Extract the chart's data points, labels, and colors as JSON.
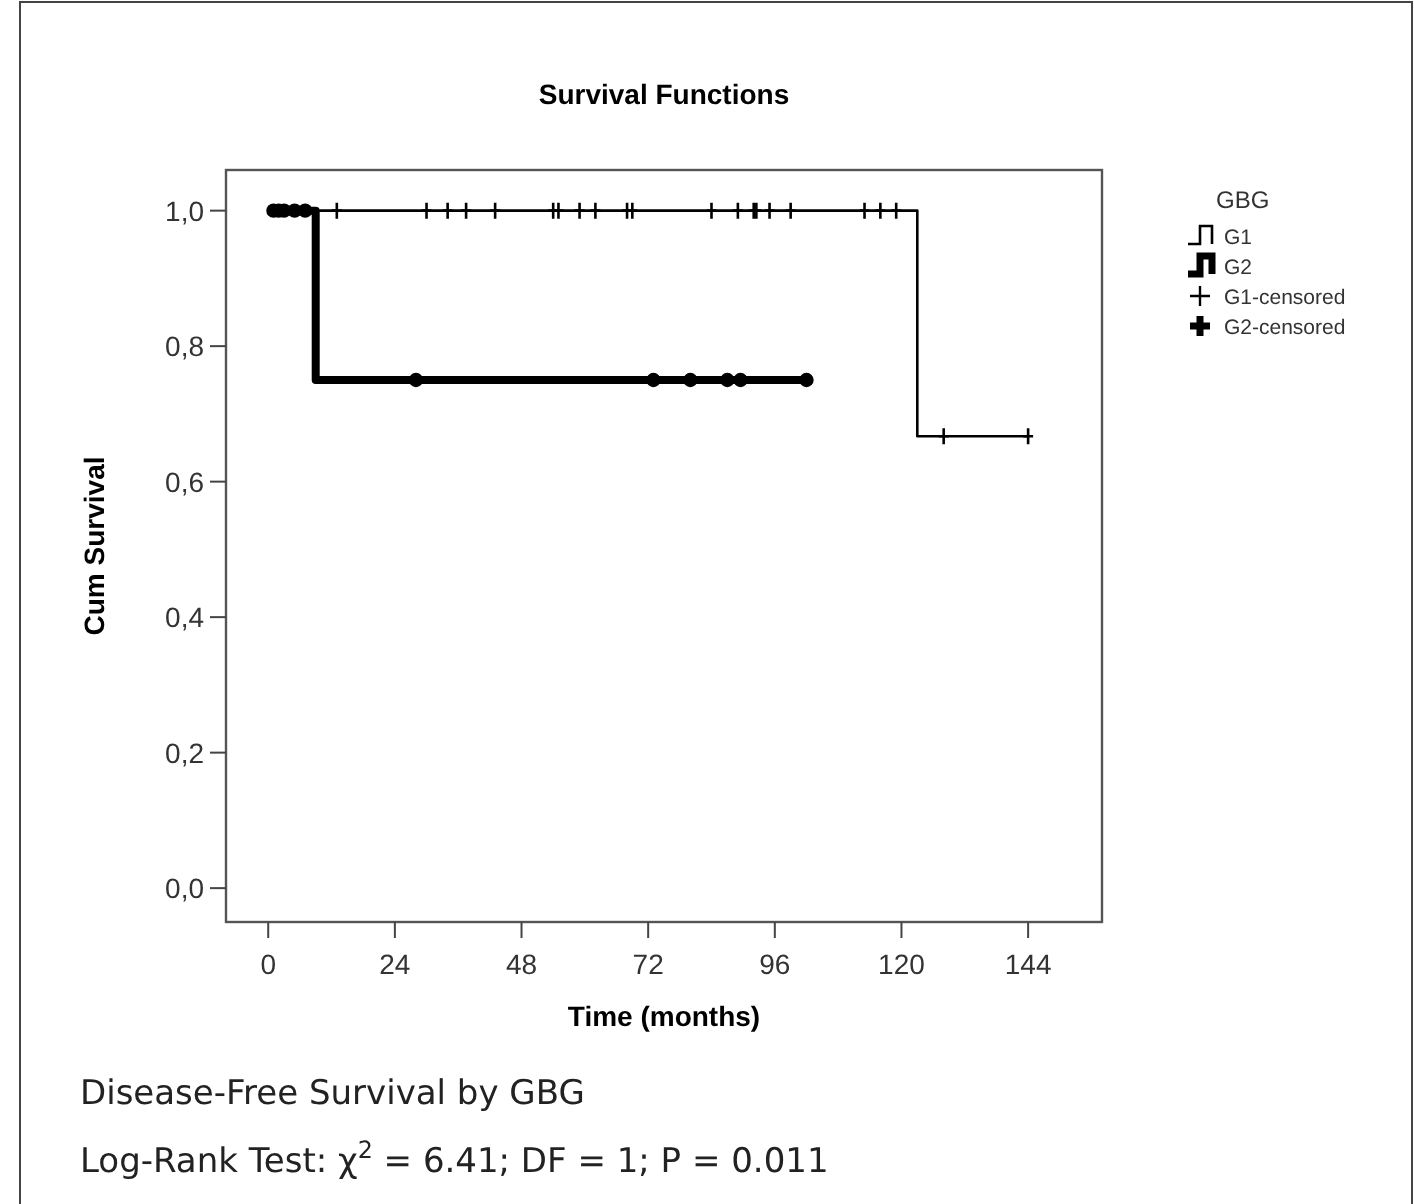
{
  "chart_data": {
    "type": "step",
    "title": "Survival Functions",
    "xlabel": "Time (months)",
    "ylabel": "Cum Survival",
    "legend_title": "GBG",
    "legend": "right",
    "xlim": [
      -8,
      158
    ],
    "xticks": [
      0,
      24,
      48,
      72,
      96,
      120,
      144
    ],
    "ylim": [
      -0.05,
      1.06
    ],
    "yticks": [
      {
        "value": 0,
        "label": "0,0"
      },
      {
        "value": 0.2,
        "label": "0,2"
      },
      {
        "value": 0.4,
        "label": "0,4"
      },
      {
        "value": 0.6,
        "label": "0,6"
      },
      {
        "value": 0.8,
        "label": "0,8"
      },
      {
        "value": 1,
        "label": "1,0"
      }
    ],
    "grid": false,
    "series": [
      {
        "name": "G1",
        "color": "#000000",
        "marker": "none",
        "x": [
          0,
          123,
          144
        ],
        "values": [
          1,
          0.667,
          0.667
        ]
      },
      {
        "name": "G2",
        "color": "#000000",
        "marker": "none",
        "x": [
          0,
          9,
          102
        ],
        "values": [
          1,
          0.75,
          0.75
        ]
      },
      {
        "name": "G1-censored",
        "type": "scatter",
        "color": "#000000",
        "marker": "cross",
        "x": [
          13,
          30,
          34,
          37.5,
          43,
          54,
          55,
          59,
          62,
          68,
          69,
          84,
          89,
          92,
          92.5,
          95,
          99,
          113,
          116,
          119,
          128,
          144
        ],
        "values": [
          1,
          1,
          1,
          1,
          1,
          1,
          1,
          1,
          1,
          1,
          1,
          1,
          1,
          1,
          1,
          1,
          1,
          1,
          1,
          1,
          0.667,
          0.667
        ]
      },
      {
        "name": "G2-censored",
        "type": "scatter",
        "color": "#000000",
        "marker": "circle",
        "x": [
          1,
          2,
          3,
          5,
          7,
          28,
          73,
          80,
          87,
          89.5,
          102
        ],
        "values": [
          1,
          1,
          1,
          1,
          1,
          0.75,
          0.75,
          0.75,
          0.75,
          0.75,
          0.75
        ]
      }
    ],
    "annotations": [
      "Disease-Free Survival by GBG",
      "Log-Rank Test: χ$^{2}$ = 6.41; DF = 1; P = 0.011"
    ]
  }
}
